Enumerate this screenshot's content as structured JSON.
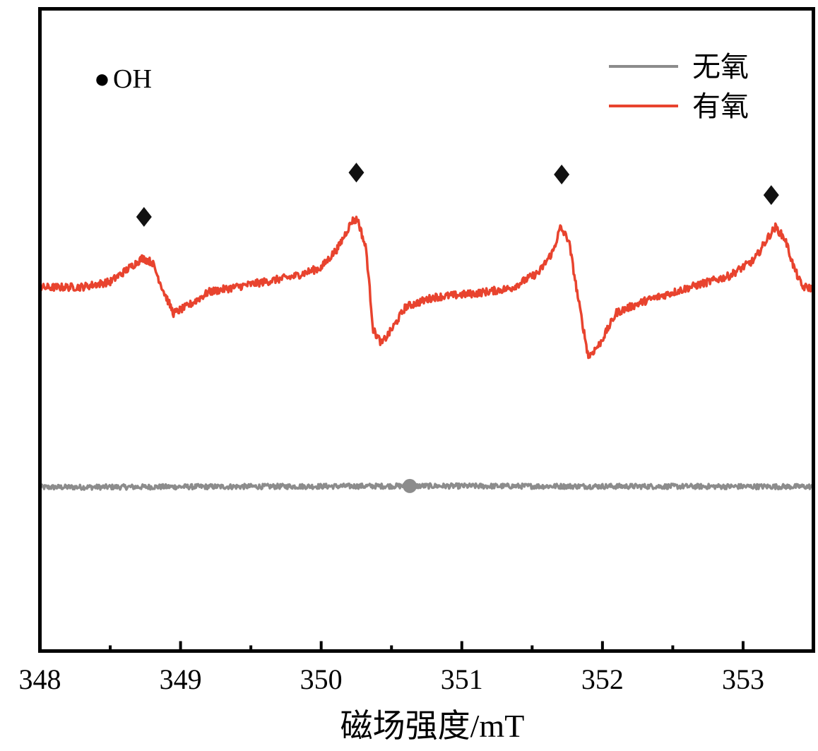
{
  "chart_data": {
    "type": "line",
    "xlabel": "磁场强度/mT",
    "ylabel": "",
    "xlim": [
      348,
      353.5
    ],
    "ylim": [
      0,
      1
    ],
    "x_major_ticks": [
      348,
      349,
      350,
      351,
      352,
      353
    ],
    "x_minor_ticks": [
      348.5,
      349.5,
      350.5,
      351.5,
      352.5
    ],
    "y_ticks_shown": false,
    "grid": false,
    "legend_position": "top-right",
    "annotation": {
      "marker": "●",
      "text": "OH"
    },
    "series": [
      {
        "name": "无氧",
        "color": "#8c8c8c",
        "baseline": 0.255,
        "noise": 0.004,
        "points": [
          [
            348,
            0.255
          ],
          [
            350.63,
            0.257
          ],
          [
            353.5,
            0.256
          ]
        ],
        "dot": {
          "x": 350.63,
          "y": 0.257
        }
      },
      {
        "name": "有氧",
        "color": "#e8432e",
        "noise": 0.006,
        "points": [
          [
            348,
            0.566
          ],
          [
            348.3,
            0.567
          ],
          [
            348.5,
            0.575
          ],
          [
            348.62,
            0.594
          ],
          [
            348.73,
            0.612
          ],
          [
            348.8,
            0.605
          ],
          [
            348.88,
            0.56
          ],
          [
            348.95,
            0.526
          ],
          [
            349.05,
            0.537
          ],
          [
            349.2,
            0.559
          ],
          [
            349.5,
            0.571
          ],
          [
            349.8,
            0.583
          ],
          [
            350.0,
            0.597
          ],
          [
            350.12,
            0.628
          ],
          [
            350.22,
            0.67
          ],
          [
            350.26,
            0.672
          ],
          [
            350.32,
            0.625
          ],
          [
            350.37,
            0.5
          ],
          [
            350.43,
            0.479
          ],
          [
            350.5,
            0.5
          ],
          [
            350.6,
            0.536
          ],
          [
            350.8,
            0.551
          ],
          [
            351.1,
            0.557
          ],
          [
            351.35,
            0.565
          ],
          [
            351.55,
            0.59
          ],
          [
            351.65,
            0.623
          ],
          [
            351.7,
            0.659
          ],
          [
            351.76,
            0.64
          ],
          [
            351.83,
            0.545
          ],
          [
            351.9,
            0.458
          ],
          [
            351.98,
            0.478
          ],
          [
            352.1,
            0.527
          ],
          [
            352.3,
            0.545
          ],
          [
            352.6,
            0.565
          ],
          [
            352.9,
            0.584
          ],
          [
            353.08,
            0.609
          ],
          [
            353.18,
            0.645
          ],
          [
            353.23,
            0.66
          ],
          [
            353.3,
            0.641
          ],
          [
            353.36,
            0.598
          ],
          [
            353.42,
            0.567
          ],
          [
            353.5,
            0.565
          ]
        ],
        "markers": [
          {
            "x": 348.74,
            "y": 0.676
          },
          {
            "x": 350.25,
            "y": 0.745
          },
          {
            "x": 351.71,
            "y": 0.742
          },
          {
            "x": 353.2,
            "y": 0.71
          }
        ]
      }
    ]
  }
}
